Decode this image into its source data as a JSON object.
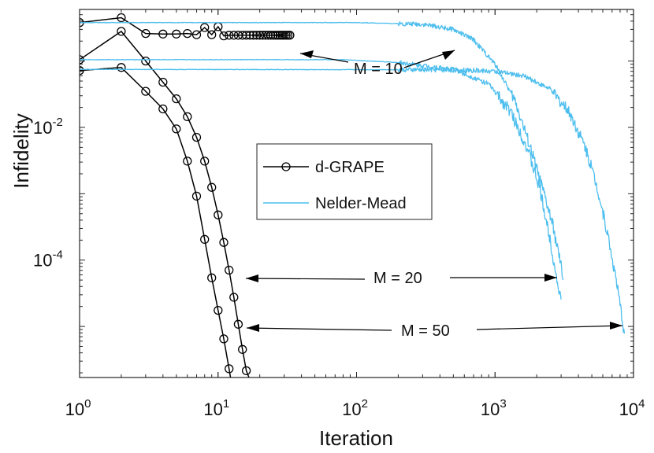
{
  "chart_data": {
    "type": "line",
    "title": "",
    "xlabel": "Iteration",
    "ylabel": "Infidelity",
    "xscale": "log",
    "yscale": "log",
    "xlim": [
      1,
      10000
    ],
    "ylim": [
      1.7e-06,
      0.6
    ],
    "xticks": [
      {
        "base": "10",
        "exp": "0",
        "value": 1
      },
      {
        "base": "10",
        "exp": "1",
        "value": 10
      },
      {
        "base": "10",
        "exp": "2",
        "value": 100
      },
      {
        "base": "10",
        "exp": "3",
        "value": 1000
      },
      {
        "base": "10",
        "exp": "4",
        "value": 10000
      }
    ],
    "yticks": [
      {
        "base": "10",
        "exp": "-2",
        "value": 0.01
      },
      {
        "base": "10",
        "exp": "-4",
        "value": 0.0001
      }
    ],
    "legend": {
      "position": "center",
      "entries": [
        {
          "label": "d-GRAPE",
          "color": "#000000",
          "marker": "circle"
        },
        {
          "label": "Nelder-Mead",
          "color": "#4DBEEE",
          "marker": "none"
        }
      ]
    },
    "series": [
      {
        "name": "d-GRAPE M = 10",
        "method": "d-GRAPE",
        "M": 10,
        "color": "#000000",
        "x": [
          1,
          2,
          3,
          4,
          5,
          6,
          7,
          8,
          9,
          10,
          11,
          12,
          13,
          14,
          15,
          16,
          17,
          18,
          19,
          20,
          21,
          22,
          23,
          24,
          25,
          26,
          27,
          28,
          29,
          30,
          31,
          32,
          33
        ],
        "y": [
          0.38,
          0.45,
          0.26,
          0.255,
          0.255,
          0.26,
          0.25,
          0.32,
          0.25,
          0.33,
          0.24,
          0.245,
          0.245,
          0.245,
          0.245,
          0.245,
          0.245,
          0.245,
          0.245,
          0.245,
          0.245,
          0.245,
          0.245,
          0.245,
          0.245,
          0.245,
          0.245,
          0.245,
          0.245,
          0.245,
          0.245,
          0.245,
          0.245
        ]
      },
      {
        "name": "d-GRAPE M = 20",
        "method": "d-GRAPE",
        "M": 20,
        "color": "#000000",
        "x": [
          1,
          2,
          3,
          4,
          5,
          6,
          7,
          8,
          9,
          10,
          11,
          12,
          13,
          14,
          15,
          16,
          17,
          18
        ],
        "y": [
          0.105,
          0.28,
          0.1,
          0.048,
          0.027,
          0.0145,
          0.0071,
          0.0031,
          0.00125,
          0.00048,
          0.000185,
          7.05e-05,
          2.75e-05,
          1.08e-05,
          4.5e-06,
          2.15e-06,
          1.55e-06,
          1.45e-06
        ]
      },
      {
        "name": "d-GRAPE M = 50",
        "method": "d-GRAPE",
        "M": 50,
        "color": "#000000",
        "x": [
          1,
          2,
          3,
          4,
          5,
          6,
          7,
          8,
          9,
          10,
          11,
          12,
          13
        ],
        "y": [
          0.072,
          0.08,
          0.035,
          0.019,
          0.0095,
          0.0031,
          0.00092,
          0.000205,
          5.4e-05,
          1.75e-05,
          6.5e-06,
          2.3e-06,
          8.5e-07
        ]
      },
      {
        "name": "Nelder-Mead M = 10",
        "method": "Nelder-Mead",
        "M": 10,
        "color": "#4DBEEE",
        "x": [
          1,
          100,
          300,
          500,
          700,
          1000,
          1400,
          1800,
          2200,
          2600,
          3000,
          3100
        ],
        "y": [
          0.38,
          0.38,
          0.36,
          0.3,
          0.21,
          0.09,
          0.025,
          0.005,
          0.0012,
          0.00035,
          8e-05,
          5e-05
        ]
      },
      {
        "name": "Nelder-Mead M = 20",
        "method": "Nelder-Mead",
        "M": 20,
        "color": "#4DBEEE",
        "x": [
          1,
          80,
          200,
          500,
          900,
          1300,
          1700,
          2100,
          2500,
          2800,
          3000
        ],
        "y": [
          0.105,
          0.105,
          0.095,
          0.075,
          0.045,
          0.017,
          0.005,
          0.0012,
          0.0002,
          5e-05,
          2.55e-05
        ]
      },
      {
        "name": "Nelder-Mead M = 50",
        "method": "Nelder-Mead",
        "M": 50,
        "color": "#4DBEEE",
        "x": [
          1,
          300,
          600,
          1000,
          1600,
          2500,
          3500,
          4500,
          5500,
          6500,
          7500,
          8600
        ],
        "y": [
          0.075,
          0.074,
          0.073,
          0.07,
          0.06,
          0.038,
          0.016,
          0.005,
          0.0012,
          0.00025,
          5e-05,
          7.8e-06
        ]
      }
    ],
    "annotations": [
      {
        "text": "M = 10"
      },
      {
        "text": "M = 20"
      },
      {
        "text": "M = 50"
      }
    ]
  }
}
